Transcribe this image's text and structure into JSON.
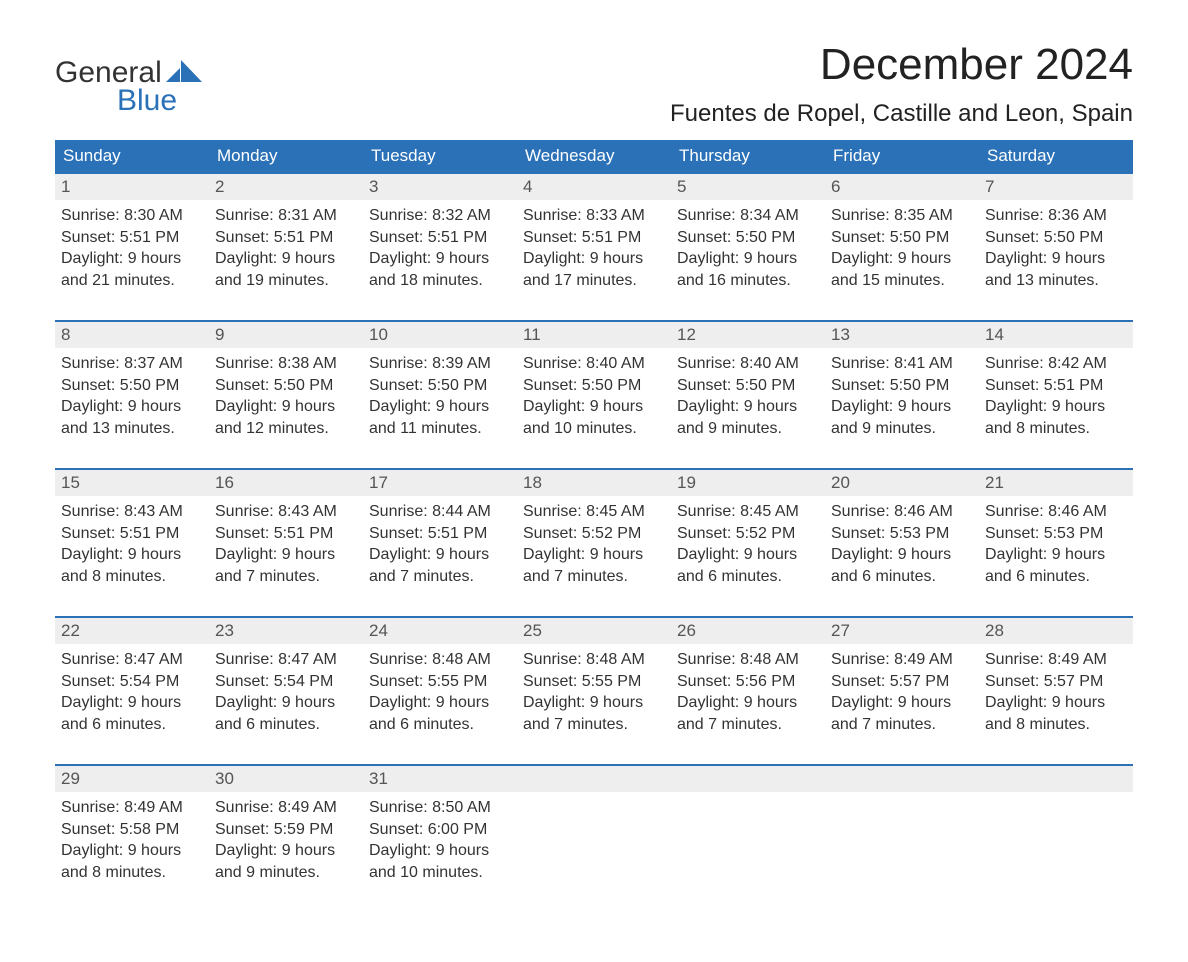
{
  "brand": {
    "word1": "General",
    "word2": "Blue"
  },
  "title": "December 2024",
  "location": "Fuentes de Ropel, Castille and Leon, Spain",
  "colors": {
    "header_bg": "#2a71b8",
    "header_text": "#ffffff",
    "daynum_bg": "#eeeeee",
    "border_top": "#2a71b8",
    "body_text": "#333333",
    "logo_blue": "#2a71b8"
  },
  "weekdays": [
    "Sunday",
    "Monday",
    "Tuesday",
    "Wednesday",
    "Thursday",
    "Friday",
    "Saturday"
  ],
  "weeks": [
    [
      {
        "n": "1",
        "sunrise": "Sunrise: 8:30 AM",
        "sunset": "Sunset: 5:51 PM",
        "d1": "Daylight: 9 hours",
        "d2": "and 21 minutes."
      },
      {
        "n": "2",
        "sunrise": "Sunrise: 8:31 AM",
        "sunset": "Sunset: 5:51 PM",
        "d1": "Daylight: 9 hours",
        "d2": "and 19 minutes."
      },
      {
        "n": "3",
        "sunrise": "Sunrise: 8:32 AM",
        "sunset": "Sunset: 5:51 PM",
        "d1": "Daylight: 9 hours",
        "d2": "and 18 minutes."
      },
      {
        "n": "4",
        "sunrise": "Sunrise: 8:33 AM",
        "sunset": "Sunset: 5:51 PM",
        "d1": "Daylight: 9 hours",
        "d2": "and 17 minutes."
      },
      {
        "n": "5",
        "sunrise": "Sunrise: 8:34 AM",
        "sunset": "Sunset: 5:50 PM",
        "d1": "Daylight: 9 hours",
        "d2": "and 16 minutes."
      },
      {
        "n": "6",
        "sunrise": "Sunrise: 8:35 AM",
        "sunset": "Sunset: 5:50 PM",
        "d1": "Daylight: 9 hours",
        "d2": "and 15 minutes."
      },
      {
        "n": "7",
        "sunrise": "Sunrise: 8:36 AM",
        "sunset": "Sunset: 5:50 PM",
        "d1": "Daylight: 9 hours",
        "d2": "and 13 minutes."
      }
    ],
    [
      {
        "n": "8",
        "sunrise": "Sunrise: 8:37 AM",
        "sunset": "Sunset: 5:50 PM",
        "d1": "Daylight: 9 hours",
        "d2": "and 13 minutes."
      },
      {
        "n": "9",
        "sunrise": "Sunrise: 8:38 AM",
        "sunset": "Sunset: 5:50 PM",
        "d1": "Daylight: 9 hours",
        "d2": "and 12 minutes."
      },
      {
        "n": "10",
        "sunrise": "Sunrise: 8:39 AM",
        "sunset": "Sunset: 5:50 PM",
        "d1": "Daylight: 9 hours",
        "d2": "and 11 minutes."
      },
      {
        "n": "11",
        "sunrise": "Sunrise: 8:40 AM",
        "sunset": "Sunset: 5:50 PM",
        "d1": "Daylight: 9 hours",
        "d2": "and 10 minutes."
      },
      {
        "n": "12",
        "sunrise": "Sunrise: 8:40 AM",
        "sunset": "Sunset: 5:50 PM",
        "d1": "Daylight: 9 hours",
        "d2": "and 9 minutes."
      },
      {
        "n": "13",
        "sunrise": "Sunrise: 8:41 AM",
        "sunset": "Sunset: 5:50 PM",
        "d1": "Daylight: 9 hours",
        "d2": "and 9 minutes."
      },
      {
        "n": "14",
        "sunrise": "Sunrise: 8:42 AM",
        "sunset": "Sunset: 5:51 PM",
        "d1": "Daylight: 9 hours",
        "d2": "and 8 minutes."
      }
    ],
    [
      {
        "n": "15",
        "sunrise": "Sunrise: 8:43 AM",
        "sunset": "Sunset: 5:51 PM",
        "d1": "Daylight: 9 hours",
        "d2": "and 8 minutes."
      },
      {
        "n": "16",
        "sunrise": "Sunrise: 8:43 AM",
        "sunset": "Sunset: 5:51 PM",
        "d1": "Daylight: 9 hours",
        "d2": "and 7 minutes."
      },
      {
        "n": "17",
        "sunrise": "Sunrise: 8:44 AM",
        "sunset": "Sunset: 5:51 PM",
        "d1": "Daylight: 9 hours",
        "d2": "and 7 minutes."
      },
      {
        "n": "18",
        "sunrise": "Sunrise: 8:45 AM",
        "sunset": "Sunset: 5:52 PM",
        "d1": "Daylight: 9 hours",
        "d2": "and 7 minutes."
      },
      {
        "n": "19",
        "sunrise": "Sunrise: 8:45 AM",
        "sunset": "Sunset: 5:52 PM",
        "d1": "Daylight: 9 hours",
        "d2": "and 6 minutes."
      },
      {
        "n": "20",
        "sunrise": "Sunrise: 8:46 AM",
        "sunset": "Sunset: 5:53 PM",
        "d1": "Daylight: 9 hours",
        "d2": "and 6 minutes."
      },
      {
        "n": "21",
        "sunrise": "Sunrise: 8:46 AM",
        "sunset": "Sunset: 5:53 PM",
        "d1": "Daylight: 9 hours",
        "d2": "and 6 minutes."
      }
    ],
    [
      {
        "n": "22",
        "sunrise": "Sunrise: 8:47 AM",
        "sunset": "Sunset: 5:54 PM",
        "d1": "Daylight: 9 hours",
        "d2": "and 6 minutes."
      },
      {
        "n": "23",
        "sunrise": "Sunrise: 8:47 AM",
        "sunset": "Sunset: 5:54 PM",
        "d1": "Daylight: 9 hours",
        "d2": "and 6 minutes."
      },
      {
        "n": "24",
        "sunrise": "Sunrise: 8:48 AM",
        "sunset": "Sunset: 5:55 PM",
        "d1": "Daylight: 9 hours",
        "d2": "and 6 minutes."
      },
      {
        "n": "25",
        "sunrise": "Sunrise: 8:48 AM",
        "sunset": "Sunset: 5:55 PM",
        "d1": "Daylight: 9 hours",
        "d2": "and 7 minutes."
      },
      {
        "n": "26",
        "sunrise": "Sunrise: 8:48 AM",
        "sunset": "Sunset: 5:56 PM",
        "d1": "Daylight: 9 hours",
        "d2": "and 7 minutes."
      },
      {
        "n": "27",
        "sunrise": "Sunrise: 8:49 AM",
        "sunset": "Sunset: 5:57 PM",
        "d1": "Daylight: 9 hours",
        "d2": "and 7 minutes."
      },
      {
        "n": "28",
        "sunrise": "Sunrise: 8:49 AM",
        "sunset": "Sunset: 5:57 PM",
        "d1": "Daylight: 9 hours",
        "d2": "and 8 minutes."
      }
    ],
    [
      {
        "n": "29",
        "sunrise": "Sunrise: 8:49 AM",
        "sunset": "Sunset: 5:58 PM",
        "d1": "Daylight: 9 hours",
        "d2": "and 8 minutes."
      },
      {
        "n": "30",
        "sunrise": "Sunrise: 8:49 AM",
        "sunset": "Sunset: 5:59 PM",
        "d1": "Daylight: 9 hours",
        "d2": "and 9 minutes."
      },
      {
        "n": "31",
        "sunrise": "Sunrise: 8:50 AM",
        "sunset": "Sunset: 6:00 PM",
        "d1": "Daylight: 9 hours",
        "d2": "and 10 minutes."
      },
      null,
      null,
      null,
      null
    ]
  ]
}
